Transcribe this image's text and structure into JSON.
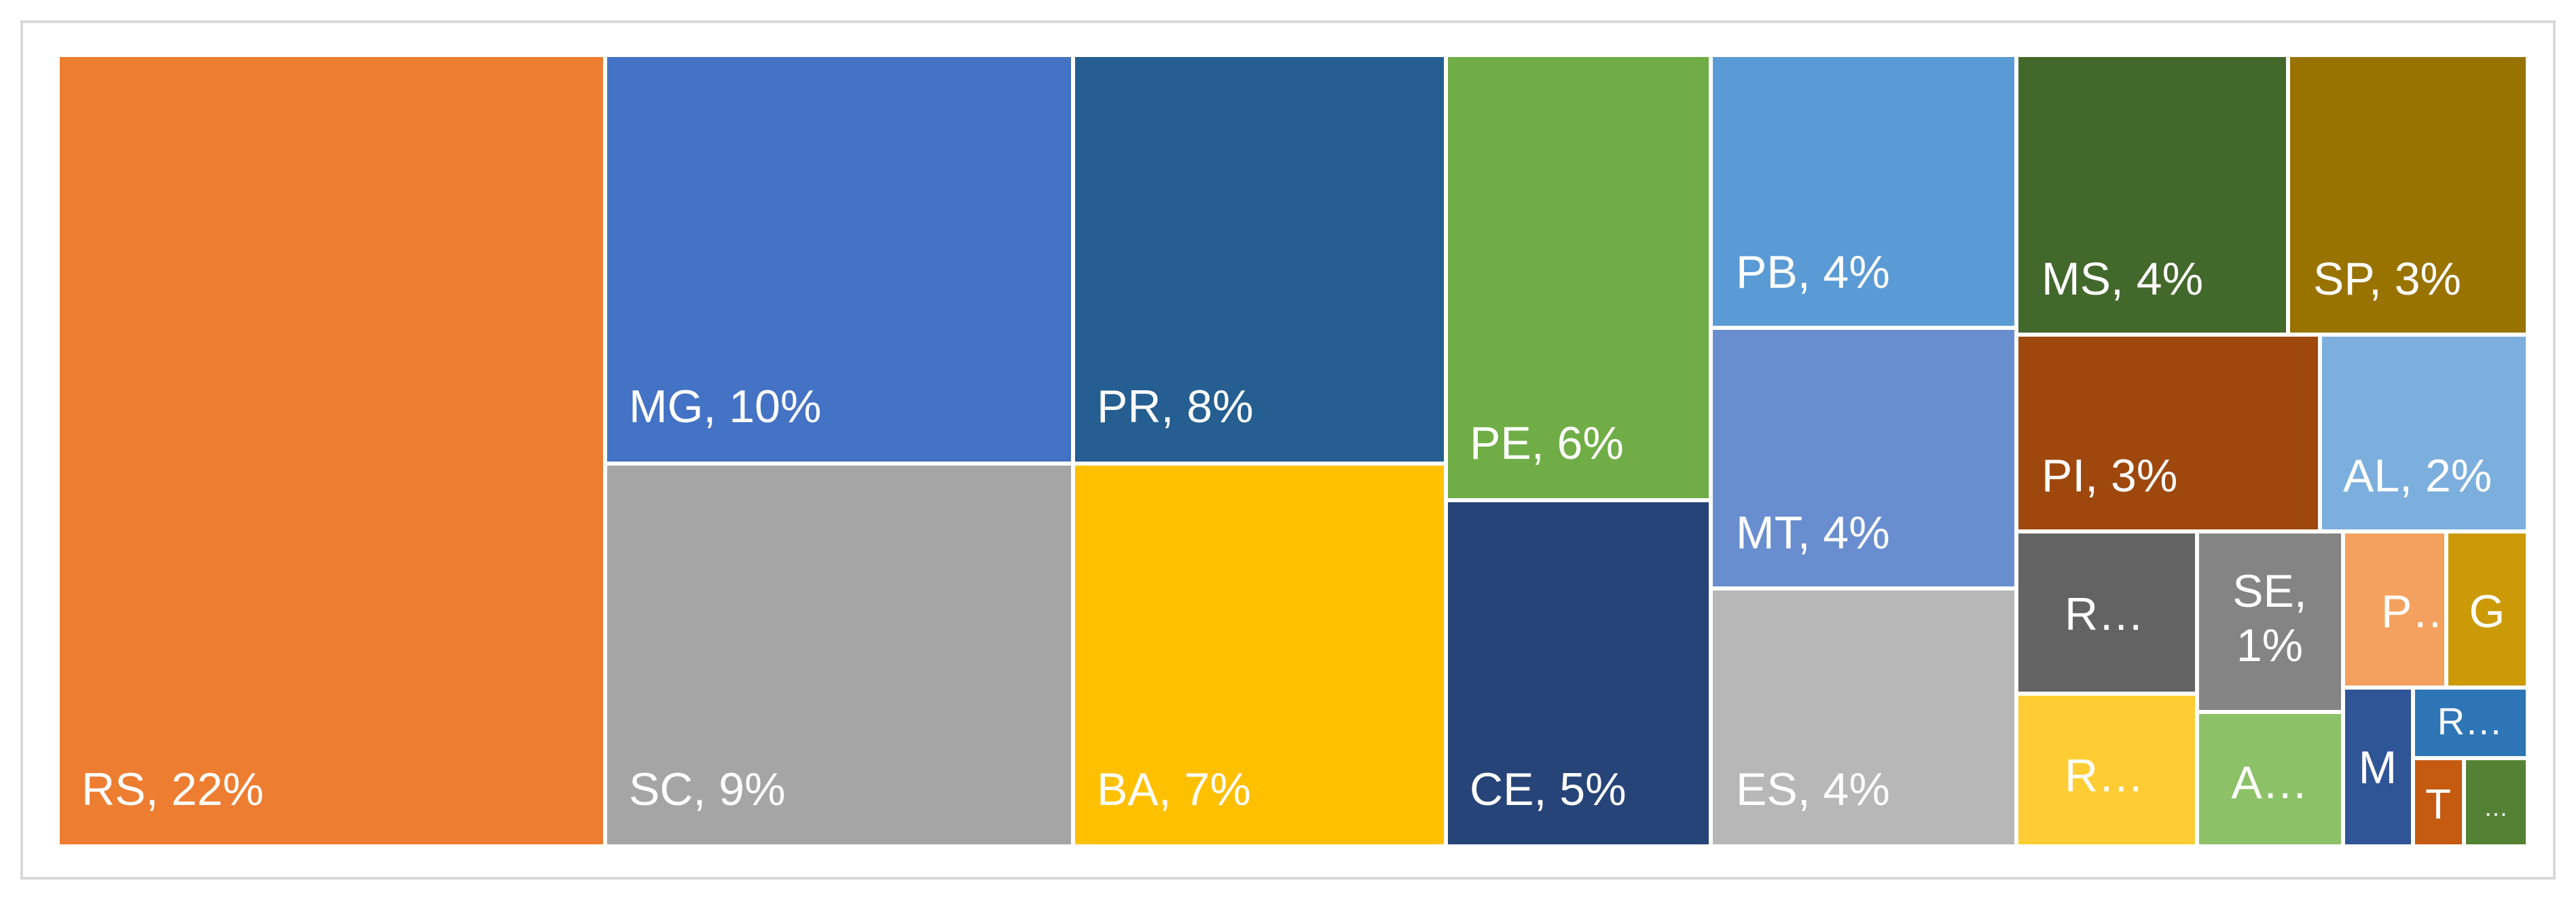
{
  "chart_data": {
    "type": "treemap",
    "title": "",
    "tiles": [
      {
        "label": "RS, 22%",
        "category": "RS",
        "value": 22,
        "color": "#ED7D31"
      },
      {
        "label": "MG, 10%",
        "category": "MG",
        "value": 10,
        "color": "#4472C4"
      },
      {
        "label": "SC, 9%",
        "category": "SC",
        "value": 9,
        "color": "#A5A5A5"
      },
      {
        "label": "PR, 8%",
        "category": "PR",
        "value": 8,
        "color": "#255E91"
      },
      {
        "label": "BA, 7%",
        "category": "BA",
        "value": 7,
        "color": "#FFC000"
      },
      {
        "label": "PE, 6%",
        "category": "PE",
        "value": 6,
        "color": "#70AD47"
      },
      {
        "label": "CE, 5%",
        "category": "CE",
        "value": 5,
        "color": "#264478"
      },
      {
        "label": "PB, 4%",
        "category": "PB",
        "value": 4,
        "color": "#5B9BD5"
      },
      {
        "label": "MT, 4%",
        "category": "MT",
        "value": 4,
        "color": "#698ED0"
      },
      {
        "label": "ES, 4%",
        "category": "ES",
        "value": 4,
        "color": "#B7B7B7"
      },
      {
        "label": "MS, 4%",
        "category": "MS",
        "value": 4,
        "color": "#43682B"
      },
      {
        "label": "SP, 3%",
        "category": "SP",
        "value": 3,
        "color": "#997300"
      },
      {
        "label": "PI, 3%",
        "category": "PI",
        "value": 3,
        "color": "#9E480E"
      },
      {
        "label": "AL, 2%",
        "category": "AL",
        "value": 2,
        "color": "#7CAFDD"
      },
      {
        "label": "R…",
        "color": "#636363"
      },
      {
        "label": "SE, 1%",
        "category": "SE",
        "value": 1,
        "color": "#848484"
      },
      {
        "label": "P…",
        "color": "#F4A15F"
      },
      {
        "label": "G",
        "color": "#CC9A06"
      },
      {
        "label": "R…",
        "color": "#FFCD33"
      },
      {
        "label": "A…",
        "color": "#8CC168"
      },
      {
        "label": "M",
        "color": "#2F5597"
      },
      {
        "label": "R…",
        "color": "#2E75B6"
      },
      {
        "label": "T",
        "color": "#C55A11"
      },
      {
        "label": "…",
        "color": "#548235"
      }
    ]
  }
}
